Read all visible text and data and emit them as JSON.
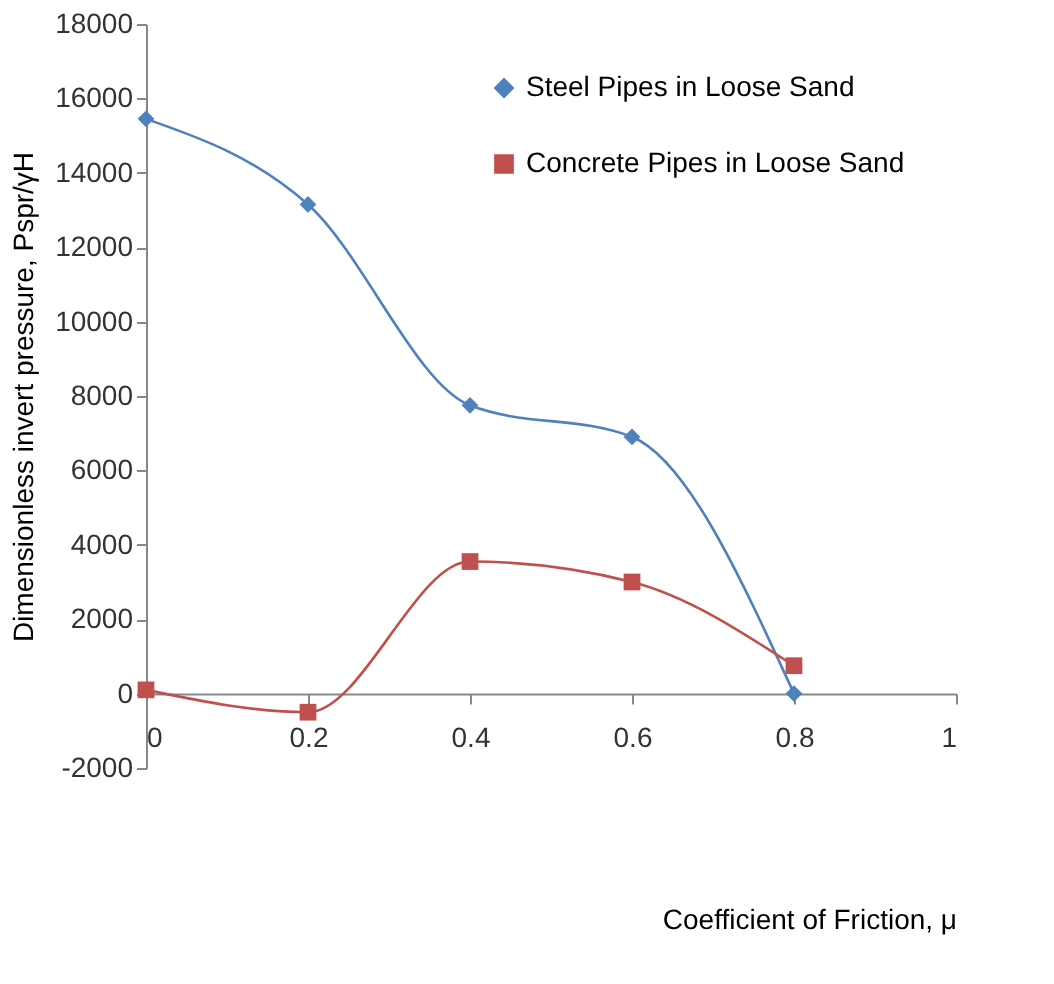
{
  "chart_data": {
    "type": "line",
    "xlabel": "Coefficient of Friction, μ",
    "ylabel": "Dimensionless invert pressure, Pspr/γH",
    "x": [
      0,
      0.2,
      0.4,
      0.6,
      0.8
    ],
    "series": [
      {
        "name": "Steel Pipes in Loose Sand",
        "color": "#4f81bd",
        "marker": "diamond",
        "values": [
          15450,
          13150,
          7750,
          6900,
          0
        ]
      },
      {
        "name": "Concrete Pipes in Loose Sand",
        "color": "#c0504d",
        "marker": "square",
        "values": [
          100,
          -500,
          3550,
          3000,
          750
        ]
      }
    ],
    "xlim": [
      0,
      1
    ],
    "xticks": [
      0,
      0.2,
      0.4,
      0.6,
      0.8,
      1
    ],
    "ylim": [
      -2000,
      18000
    ],
    "yticks": [
      -2000,
      0,
      2000,
      4000,
      6000,
      8000,
      10000,
      12000,
      14000,
      16000,
      18000
    ],
    "grid": false,
    "legend": "top right",
    "line_style": "solid"
  }
}
